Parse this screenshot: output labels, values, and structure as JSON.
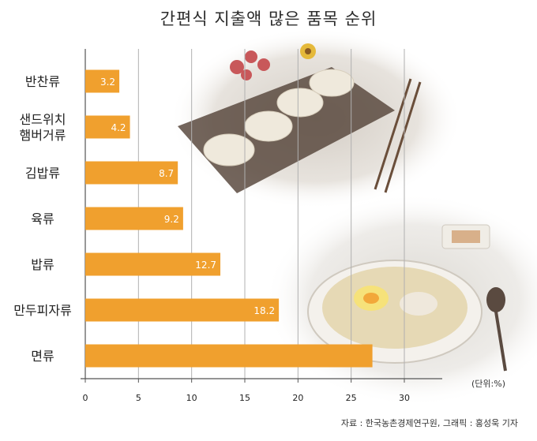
{
  "title": "간편식 지출액 많은 품목 순위",
  "unit_label": "(단위:%)",
  "source": "자료 : 한국농촌경제연구원, 그래픽 : 홍성욱 기자",
  "colors": {
    "bar": "#f0a02e",
    "bar_label": "#ffffff",
    "grid": "#b0b0b0",
    "axis": "#555555",
    "text": "#222222"
  },
  "chart_data": {
    "type": "bar",
    "orientation": "horizontal",
    "title": "간편식 지출액 많은 품목 순위",
    "categories": [
      "반찬류",
      "샌드위치\n햄버거류",
      "김밥류",
      "육류",
      "밥류",
      "만두피자류",
      "면류"
    ],
    "values": [
      3.2,
      4.2,
      8.7,
      9.2,
      12.7,
      18.2,
      27
    ],
    "value_labels": [
      "3.2",
      "4.2",
      "8.7",
      "9.2",
      "12.7",
      "18.2",
      ""
    ],
    "xlim": [
      0,
      30
    ],
    "xticks": [
      0,
      5,
      10,
      15,
      20,
      25,
      30
    ],
    "grid": true
  }
}
